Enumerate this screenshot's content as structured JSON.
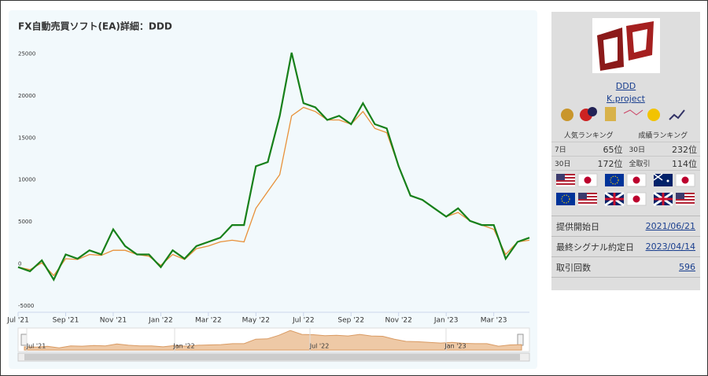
{
  "chart_data": {
    "type": "line",
    "title": "FX自動売買ソフト(EA)詳細：DDD",
    "categories": [
      "Jul '21",
      null,
      null,
      null,
      "Sep '21",
      null,
      null,
      null,
      "Nov '21",
      null,
      null,
      null,
      "Jan '22",
      null,
      null,
      null,
      "Mar '22",
      null,
      null,
      null,
      "May '22",
      null,
      null,
      null,
      "Jul '22",
      null,
      null,
      null,
      "Sep '22",
      null,
      null,
      null,
      "Nov '22",
      null,
      null,
      null,
      "Jan '23",
      null,
      null,
      null,
      "Mar '23",
      null,
      null,
      null
    ],
    "series": [
      {
        "color": "#e8913a",
        "values": [
          0,
          -300,
          500,
          -1000,
          1000,
          900,
          1500,
          1400,
          2000,
          2000,
          1500,
          1300,
          200,
          1500,
          900,
          2200,
          2500,
          3000,
          3200,
          3000,
          7000,
          9000,
          11000,
          18000,
          19000,
          18500,
          17500,
          17500,
          17000,
          18500,
          16500,
          16000,
          12000,
          8500,
          8000,
          7000,
          6000,
          6500,
          5500,
          5000,
          4500,
          1500,
          3000,
          3200
        ]
      },
      {
        "color": "#17801a",
        "values": [
          0,
          -500,
          800,
          -1500,
          1500,
          1000,
          2000,
          1500,
          4500,
          2500,
          1500,
          1500,
          0,
          2000,
          1000,
          2500,
          3000,
          3500,
          5000,
          5000,
          12000,
          12500,
          18000,
          25500,
          19500,
          19000,
          17500,
          18000,
          17000,
          19500,
          17000,
          16500,
          12000,
          8500,
          8000,
          7000,
          6000,
          7000,
          5500,
          5000,
          5000,
          1000,
          3000,
          3500
        ]
      }
    ],
    "ylim": [
      -5000,
      27000
    ],
    "yticks": [
      -5000,
      0,
      5000,
      10000,
      15000,
      20000,
      25000
    ],
    "grid": false,
    "navigator": {
      "labels": [
        "Jul '21",
        "Jan '22",
        "Jul '22",
        "Jan '23"
      ]
    }
  },
  "sidebar": {
    "name": "DDD",
    "author": "K.project",
    "popularity": {
      "title": "人気ランキング",
      "rows": [
        [
          "7日",
          "65位"
        ],
        [
          "30日",
          "172位"
        ]
      ]
    },
    "performance": {
      "title": "成績ランキング",
      "rows": [
        [
          "30日",
          "232位"
        ],
        [
          "全取引",
          "114位"
        ]
      ]
    },
    "info": [
      [
        "提供開始日",
        "2021/06/21"
      ],
      [
        "最終シグナル約定日",
        "2023/04/14"
      ],
      [
        "取引回数",
        "596"
      ]
    ]
  }
}
